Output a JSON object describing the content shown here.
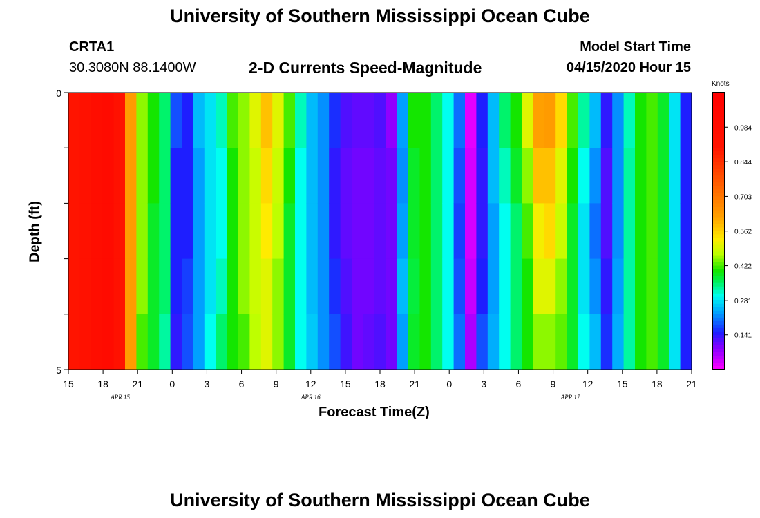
{
  "header": {
    "title": "University of Southern Mississippi Ocean Cube",
    "station": "CRTA1",
    "coords": "30.3080N 88.1400W",
    "subtitle": "2-D Currents Speed-Magnitude",
    "model_start_label": "Model Start Time",
    "model_start_value": "04/15/2020 Hour 15"
  },
  "footer": {
    "title": "University of Southern Mississippi Ocean Cube"
  },
  "chart_data": {
    "type": "heatmap",
    "title": "2-D Currents Speed-Magnitude",
    "xlabel": "Forecast Time(Z)",
    "ylabel": "Depth (ft)",
    "colorbar_label": "Knots",
    "x_hour_offsets_start": 0,
    "x_range_hours": [
      0,
      54
    ],
    "x_tick_labels": [
      "15",
      "18",
      "21",
      "0",
      "3",
      "6",
      "9",
      "12",
      "15",
      "18",
      "21",
      "0",
      "3",
      "6",
      "9",
      "12",
      "15",
      "18",
      "21"
    ],
    "date_labels": [
      {
        "label": "APR 15",
        "hour": 4.5
      },
      {
        "label": "APR 16",
        "hour": 21
      },
      {
        "label": "APR 17",
        "hour": 43.5
      }
    ],
    "y_tick_labels": [
      "0",
      "5"
    ],
    "y_range_ft": [
      0,
      5
    ],
    "depth_levels": 5,
    "colorbar_ticks": [
      "0.984",
      "0.844",
      "0.703",
      "0.562",
      "0.422",
      "0.281",
      "0.141"
    ],
    "value_range": [
      0,
      1.125
    ],
    "speed_columns_knots": [
      [
        0.9,
        0.9,
        0.9,
        0.9,
        0.9
      ],
      [
        0.93,
        0.93,
        0.93,
        0.93,
        0.93
      ],
      [
        0.98,
        0.98,
        0.98,
        0.98,
        0.98
      ],
      [
        1.0,
        1.0,
        1.0,
        1.0,
        1.0
      ],
      [
        0.93,
        0.93,
        0.93,
        0.93,
        0.93
      ],
      [
        0.63,
        0.63,
        0.63,
        0.63,
        0.63
      ],
      [
        0.45,
        0.45,
        0.45,
        0.45,
        0.42
      ],
      [
        0.4,
        0.4,
        0.38,
        0.38,
        0.38
      ],
      [
        0.35,
        0.35,
        0.35,
        0.35,
        0.33
      ],
      [
        0.18,
        0.15,
        0.15,
        0.15,
        0.14
      ],
      [
        0.15,
        0.15,
        0.15,
        0.17,
        0.18
      ],
      [
        0.25,
        0.23,
        0.23,
        0.23,
        0.23
      ],
      [
        0.28,
        0.28,
        0.28,
        0.28,
        0.3
      ],
      [
        0.32,
        0.3,
        0.3,
        0.32,
        0.35
      ],
      [
        0.42,
        0.4,
        0.4,
        0.4,
        0.4
      ],
      [
        0.45,
        0.45,
        0.45,
        0.45,
        0.42
      ],
      [
        0.5,
        0.48,
        0.48,
        0.48,
        0.47
      ],
      [
        0.58,
        0.55,
        0.53,
        0.5,
        0.5
      ],
      [
        0.5,
        0.48,
        0.47,
        0.45,
        0.45
      ],
      [
        0.42,
        0.4,
        0.38,
        0.38,
        0.38
      ],
      [
        0.32,
        0.3,
        0.3,
        0.3,
        0.3
      ],
      [
        0.25,
        0.25,
        0.25,
        0.25,
        0.26
      ],
      [
        0.22,
        0.22,
        0.22,
        0.22,
        0.22
      ],
      [
        0.16,
        0.14,
        0.14,
        0.16,
        0.18
      ],
      [
        0.12,
        0.11,
        0.11,
        0.12,
        0.13
      ],
      [
        0.11,
        0.1,
        0.1,
        0.1,
        0.1
      ],
      [
        0.11,
        0.1,
        0.1,
        0.1,
        0.11
      ],
      [
        0.12,
        0.11,
        0.11,
        0.11,
        0.12
      ],
      [
        0.08,
        0.1,
        0.1,
        0.1,
        0.1
      ],
      [
        0.23,
        0.22,
        0.23,
        0.25,
        0.23
      ],
      [
        0.4,
        0.38,
        0.38,
        0.37,
        0.38
      ],
      [
        0.4,
        0.4,
        0.4,
        0.4,
        0.4
      ],
      [
        0.35,
        0.35,
        0.35,
        0.35,
        0.35
      ],
      [
        0.3,
        0.3,
        0.3,
        0.3,
        0.3
      ],
      [
        0.2,
        0.18,
        0.17,
        0.18,
        0.2
      ],
      [
        0.02,
        0.03,
        0.03,
        0.04,
        0.06
      ],
      [
        0.15,
        0.14,
        0.14,
        0.15,
        0.18
      ],
      [
        0.25,
        0.25,
        0.23,
        0.23,
        0.24
      ],
      [
        0.35,
        0.32,
        0.3,
        0.3,
        0.3
      ],
      [
        0.4,
        0.38,
        0.35,
        0.35,
        0.35
      ],
      [
        0.5,
        0.45,
        0.42,
        0.4,
        0.4
      ],
      [
        0.62,
        0.58,
        0.52,
        0.5,
        0.45
      ],
      [
        0.63,
        0.58,
        0.55,
        0.5,
        0.45
      ],
      [
        0.55,
        0.5,
        0.48,
        0.45,
        0.43
      ],
      [
        0.42,
        0.4,
        0.38,
        0.38,
        0.38
      ],
      [
        0.33,
        0.3,
        0.28,
        0.28,
        0.3
      ],
      [
        0.25,
        0.22,
        0.2,
        0.22,
        0.25
      ],
      [
        0.14,
        0.12,
        0.12,
        0.14,
        0.16
      ],
      [
        0.22,
        0.22,
        0.22,
        0.23,
        0.24
      ],
      [
        0.32,
        0.33,
        0.33,
        0.33,
        0.33
      ],
      [
        0.4,
        0.4,
        0.4,
        0.4,
        0.4
      ],
      [
        0.42,
        0.42,
        0.42,
        0.42,
        0.42
      ],
      [
        0.38,
        0.38,
        0.38,
        0.38,
        0.38
      ],
      [
        0.28,
        0.28,
        0.28,
        0.28,
        0.28
      ],
      [
        0.15,
        0.15,
        0.15,
        0.15,
        0.15
      ]
    ]
  }
}
